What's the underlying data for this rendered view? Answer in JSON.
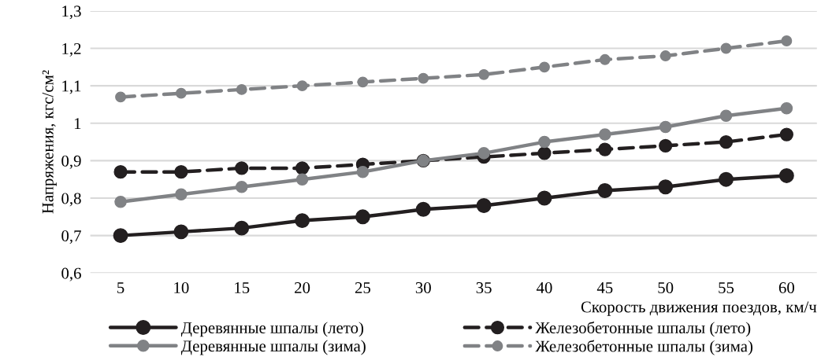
{
  "chart_data": {
    "type": "line",
    "xlabel": "Скорость движения поездов, км/ч",
    "ylabel": "Напряжения, кгс/см²",
    "categories": [
      "5",
      "10",
      "15",
      "20",
      "25",
      "30",
      "35",
      "40",
      "45",
      "50",
      "55",
      "60"
    ],
    "series": [
      {
        "name": "Деревянные шпалы (лето)",
        "color": "#231f20",
        "line_style": "solid",
        "values": [
          0.7,
          0.71,
          0.72,
          0.74,
          0.75,
          0.77,
          0.78,
          0.8,
          0.82,
          0.83,
          0.85,
          0.86
        ]
      },
      {
        "name": "Железобетонные шпалы (лето)",
        "color": "#231f20",
        "line_style": "dashed",
        "values": [
          0.87,
          0.87,
          0.88,
          0.88,
          0.89,
          0.9,
          0.91,
          0.92,
          0.93,
          0.94,
          0.95,
          0.97
        ]
      },
      {
        "name": "Деревянные шпалы (зима)",
        "color": "#808285",
        "line_style": "solid",
        "values": [
          0.79,
          0.81,
          0.83,
          0.85,
          0.87,
          0.9,
          0.92,
          0.95,
          0.97,
          0.99,
          1.02,
          1.04
        ]
      },
      {
        "name": "Железобетонные шпалы (зима)",
        "color": "#808285",
        "line_style": "dashed",
        "values": [
          1.07,
          1.08,
          1.09,
          1.1,
          1.11,
          1.12,
          1.13,
          1.15,
          1.17,
          1.18,
          1.2,
          1.22
        ]
      }
    ],
    "ylim": [
      0.6,
      1.3
    ],
    "yticks": [
      {
        "value": 0.6,
        "label": "0,6"
      },
      {
        "value": 0.7,
        "label": "0,7"
      },
      {
        "value": 0.8,
        "label": "0,8"
      },
      {
        "value": 0.9,
        "label": "0,9"
      },
      {
        "value": 1,
        "label": "1"
      },
      {
        "value": 1.1,
        "label": "1,1"
      },
      {
        "value": 1.2,
        "label": "1,2"
      },
      {
        "value": 1.3,
        "label": "1,3"
      }
    ],
    "grid": "y",
    "legend": "bottom",
    "marker": "circle"
  }
}
